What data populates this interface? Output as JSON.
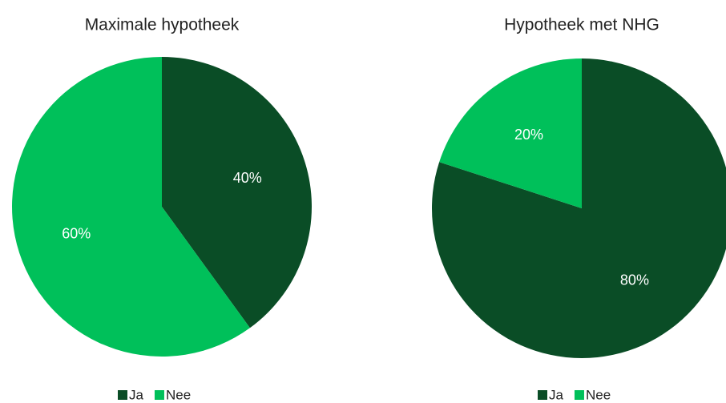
{
  "chart_data": [
    {
      "type": "pie",
      "title": "Maximale hypotheek",
      "categories": [
        "Ja",
        "Nee"
      ],
      "values": [
        40,
        60
      ],
      "value_labels": [
        "40%",
        "60%"
      ],
      "colors": [
        "#0a4d26",
        "#00c05a"
      ],
      "legend": "bottom"
    },
    {
      "type": "pie",
      "title": "Hypotheek met NHG",
      "categories": [
        "Ja",
        "Nee"
      ],
      "values": [
        80,
        20
      ],
      "value_labels": [
        "80%",
        "20%"
      ],
      "colors": [
        "#0a4d26",
        "#00c05a"
      ],
      "legend": "bottom"
    }
  ]
}
